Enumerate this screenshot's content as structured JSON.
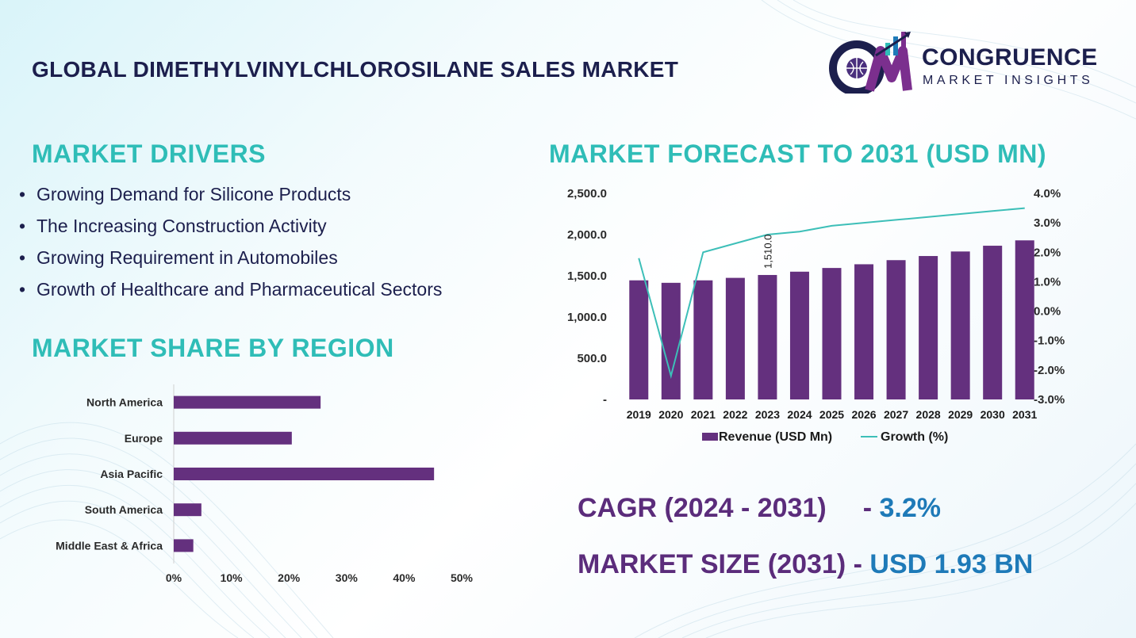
{
  "header": {
    "title": "GLOBAL DIMETHYLVINYLCHLOROSILANE SALES MARKET",
    "logo_line1": "CONGRUENCE",
    "logo_line2": "MARKET INSIGHTS",
    "logo_mark": "CM"
  },
  "drivers": {
    "title": "MARKET DRIVERS",
    "items": [
      "Growing Demand for Silicone Products",
      "The Increasing Construction Activity",
      "Growing Requirement in Automobiles",
      "Growth of Healthcare and Pharmaceutical Sectors"
    ]
  },
  "region_section": {
    "title": "MARKET SHARE BY REGION"
  },
  "forecast_section": {
    "title": "MARKET FORECAST TO 2031 (USD MN)"
  },
  "stats": {
    "cagr_label": "CAGR (2024 - 2031)",
    "cagr_sep": "- ",
    "cagr_value": "3.2%",
    "size_label": "MARKET SIZE (2031)",
    "size_sep": " - ",
    "size_value": "USD 1.93 BN"
  },
  "colors": {
    "bar": "#64307e",
    "line": "#3dbfb8",
    "accent_teal": "#2fbdb7",
    "accent_purple": "#5b2c7b",
    "accent_blue": "#1e7ab8",
    "navy": "#1c1f4d"
  },
  "chart_data": [
    {
      "type": "bar",
      "orientation": "horizontal",
      "categories": [
        "North America",
        "Europe",
        "Asia Pacific",
        "South America",
        "Middle East & Africa"
      ],
      "values": [
        25.5,
        20.5,
        45.2,
        4.8,
        3.4
      ],
      "xlim": [
        0,
        50
      ],
      "xticks": [
        "0%",
        "10%",
        "20%",
        "30%",
        "40%",
        "50%"
      ],
      "grid": false,
      "legend": "none"
    },
    {
      "type": "bar+line",
      "categories": [
        "2019",
        "2020",
        "2021",
        "2022",
        "2023",
        "2024",
        "2025",
        "2026",
        "2027",
        "2028",
        "2029",
        "2030",
        "2031"
      ],
      "series": [
        {
          "name": "Revenue (USD Mn)",
          "type": "bar",
          "axis": "left",
          "values": [
            1445,
            1415,
            1445,
            1475,
            1510,
            1550,
            1595,
            1640,
            1690,
            1740,
            1795,
            1865,
            1930
          ]
        },
        {
          "name": "Growth (%)",
          "type": "line",
          "axis": "right",
          "values": [
            1.8,
            -2.2,
            2.0,
            2.3,
            2.6,
            2.7,
            2.9,
            3.0,
            3.1,
            3.2,
            3.3,
            3.4,
            3.5
          ]
        }
      ],
      "data_labels": [
        {
          "category": "2023",
          "text": "1,510.0"
        }
      ],
      "ylim_left": [
        0,
        2500
      ],
      "yticks_left": [
        "-",
        "500.0",
        "1,000.0",
        "1,500.0",
        "2,000.0",
        "2,500.0"
      ],
      "ylim_right": [
        -3,
        4
      ],
      "yticks_right": [
        "-3.0%",
        "-2.0%",
        "-1.0%",
        "0.0%",
        "1.0%",
        "2.0%",
        "3.0%",
        "4.0%"
      ],
      "grid": false,
      "legend": "bottom"
    }
  ]
}
